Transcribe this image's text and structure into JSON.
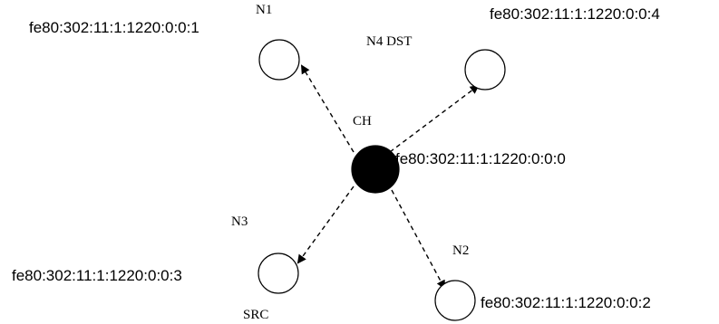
{
  "nodes": {
    "ch": {
      "label": "CH",
      "address": "fe80:302:11:1:1220:0:0:0"
    },
    "n1": {
      "label": "N1",
      "address": "fe80:302:11:1:1220:0:0:1"
    },
    "n2": {
      "label": "N2",
      "address": "fe80:302:11:1:1220:0:0:2"
    },
    "n3": {
      "label": "N3",
      "address": "fe80:302:11:1:1220:0:0:3",
      "role": "SRC"
    },
    "n4": {
      "label": "N4 DST",
      "address": "fe80:302:11:1:1220:0:0:4"
    }
  },
  "links": [
    {
      "from": "ch",
      "to": "n1",
      "style": "dashed",
      "arrow": "to"
    },
    {
      "from": "ch",
      "to": "n4",
      "style": "dashed",
      "arrow": "to"
    },
    {
      "from": "ch",
      "to": "n3",
      "style": "dashed",
      "arrow": "to"
    },
    {
      "from": "ch",
      "to": "n2",
      "style": "dashed",
      "arrow": "to"
    }
  ],
  "colors": {
    "stroke": "#000000",
    "cluster_head_fill": "#000000",
    "node_fill": "#ffffff"
  }
}
